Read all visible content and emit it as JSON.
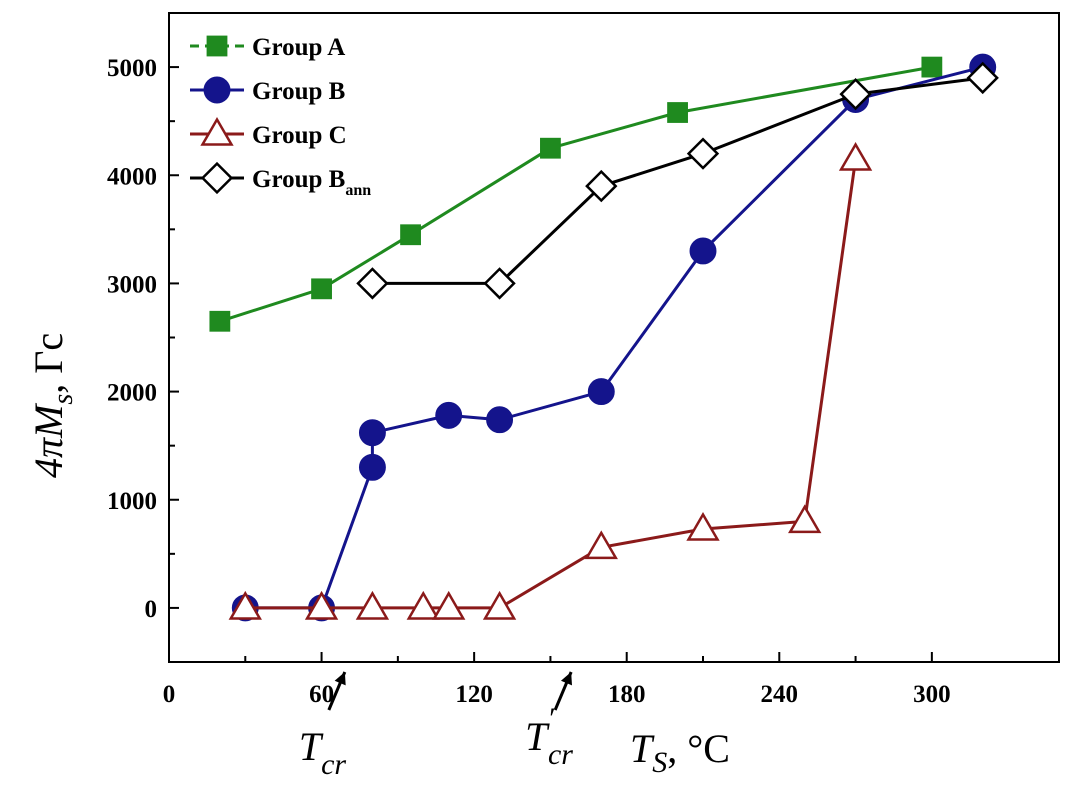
{
  "chart_data": {
    "type": "line",
    "xlim": [
      0,
      350
    ],
    "ylim": [
      -500,
      5500
    ],
    "x_ticks": [
      0,
      60,
      120,
      180,
      240,
      300
    ],
    "y_ticks": [
      0,
      1000,
      2000,
      3000,
      4000,
      5000
    ],
    "x_tick_labels": [
      "0",
      "60",
      "120",
      "180",
      "240",
      "300"
    ],
    "y_tick_labels": [
      "0",
      "1000",
      "2000",
      "3000",
      "4000",
      "5000"
    ],
    "xlabel": {
      "main": "T",
      "sub": "S",
      "rest": ", °C"
    },
    "ylabel": {
      "main": "4πM",
      "sub": "s",
      "rest": ", Гс"
    },
    "grid": false,
    "legend_position": "top-left",
    "annotations": [
      {
        "main": "T",
        "sub": "cr",
        "prime": "",
        "x": 66
      },
      {
        "main": "T",
        "sub": "cr",
        "prime": "′",
        "x": 155
      }
    ],
    "series": [
      {
        "name": "Group A",
        "name_sub": "",
        "color": "#1f8a1f",
        "marker": "filled-square",
        "dashed": true,
        "points": [
          [
            20,
            2650
          ],
          [
            60,
            2950
          ],
          [
            95,
            3450
          ],
          [
            150,
            4250
          ],
          [
            200,
            4580
          ],
          [
            300,
            5000
          ]
        ]
      },
      {
        "name": "Group B",
        "name_sub": "",
        "color": "#14148c",
        "marker": "filled-circle",
        "dashed": false,
        "points": [
          [
            30,
            0
          ],
          [
            60,
            0
          ],
          [
            80,
            1300
          ],
          [
            80,
            1620
          ],
          [
            110,
            1780
          ],
          [
            130,
            1740
          ],
          [
            170,
            2000
          ],
          [
            210,
            3300
          ],
          [
            270,
            4700
          ],
          [
            320,
            5000
          ]
        ]
      },
      {
        "name": "Group C",
        "name_sub": "",
        "color": "#8b1a1a",
        "marker": "open-triangle",
        "dashed": false,
        "points": [
          [
            30,
            0
          ],
          [
            60,
            0
          ],
          [
            80,
            0
          ],
          [
            100,
            0
          ],
          [
            110,
            0
          ],
          [
            130,
            0
          ],
          [
            170,
            560
          ],
          [
            210,
            730
          ],
          [
            250,
            800
          ],
          [
            270,
            4150
          ]
        ]
      },
      {
        "name": "Group B",
        "name_sub": "ann",
        "color": "#000000",
        "marker": "open-diamond",
        "dashed": false,
        "points": [
          [
            80,
            3000
          ],
          [
            130,
            3000
          ],
          [
            170,
            3900
          ],
          [
            210,
            4200
          ],
          [
            270,
            4750
          ],
          [
            320,
            4900
          ]
        ]
      }
    ]
  }
}
